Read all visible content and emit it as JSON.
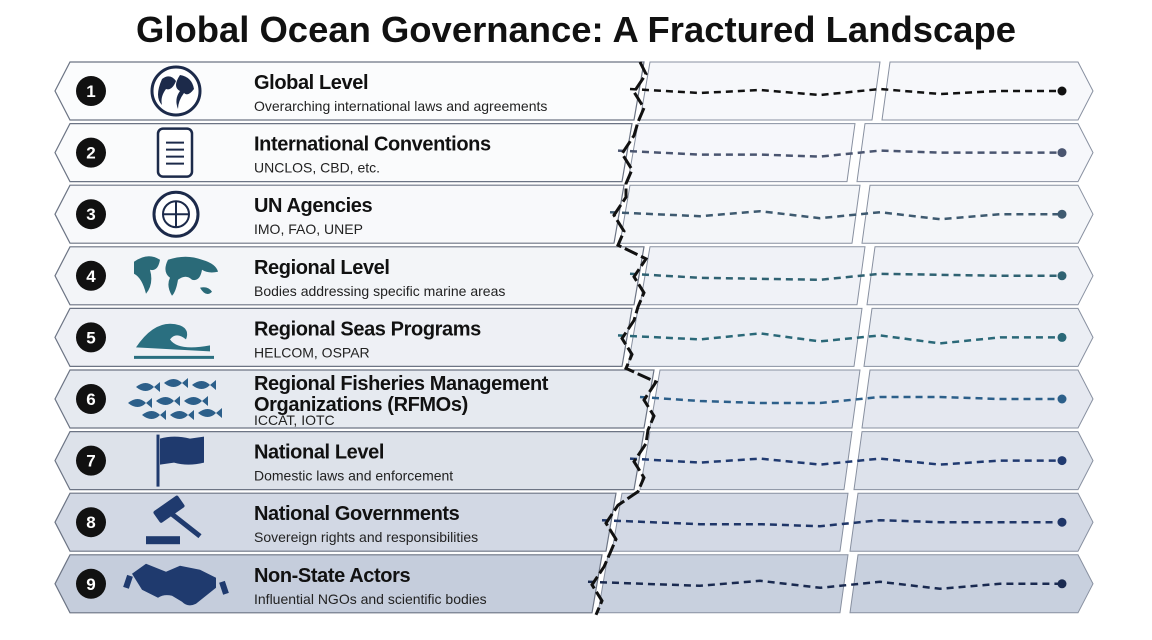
{
  "header": {
    "title": "Global Ocean Governance: A Fractured Landscape"
  },
  "rows": [
    {
      "number": "1",
      "title": "Global Level",
      "subtitle": "Overarching international laws and agreements"
    },
    {
      "number": "2",
      "title": "International Conventions",
      "subtitle": "UNCLOS, CBD, etc."
    },
    {
      "number": "3",
      "title": "UN Agencies",
      "subtitle": "IMO, FAO, UNEP"
    },
    {
      "number": "4",
      "title": "Regional Level",
      "subtitle": "Bodies addressing specific marine areas"
    },
    {
      "number": "5",
      "title": "Regional Seas Programs",
      "subtitle": "HELCOM, OSPAR"
    },
    {
      "number": "6",
      "title": [
        "Regional Fisheries Management",
        "Organizations (RFMOs)"
      ],
      "subtitle": "ICCAT, IOTC"
    },
    {
      "number": "7",
      "title": "National Level",
      "subtitle": "Domestic laws and enforcement"
    },
    {
      "number": "8",
      "title": "National Governments",
      "subtitle": "Sovereign rights and responsibilities"
    },
    {
      "number": "9",
      "title": "Non-State Actors",
      "subtitle": "Influential NGOs and scientific bodies"
    }
  ]
}
